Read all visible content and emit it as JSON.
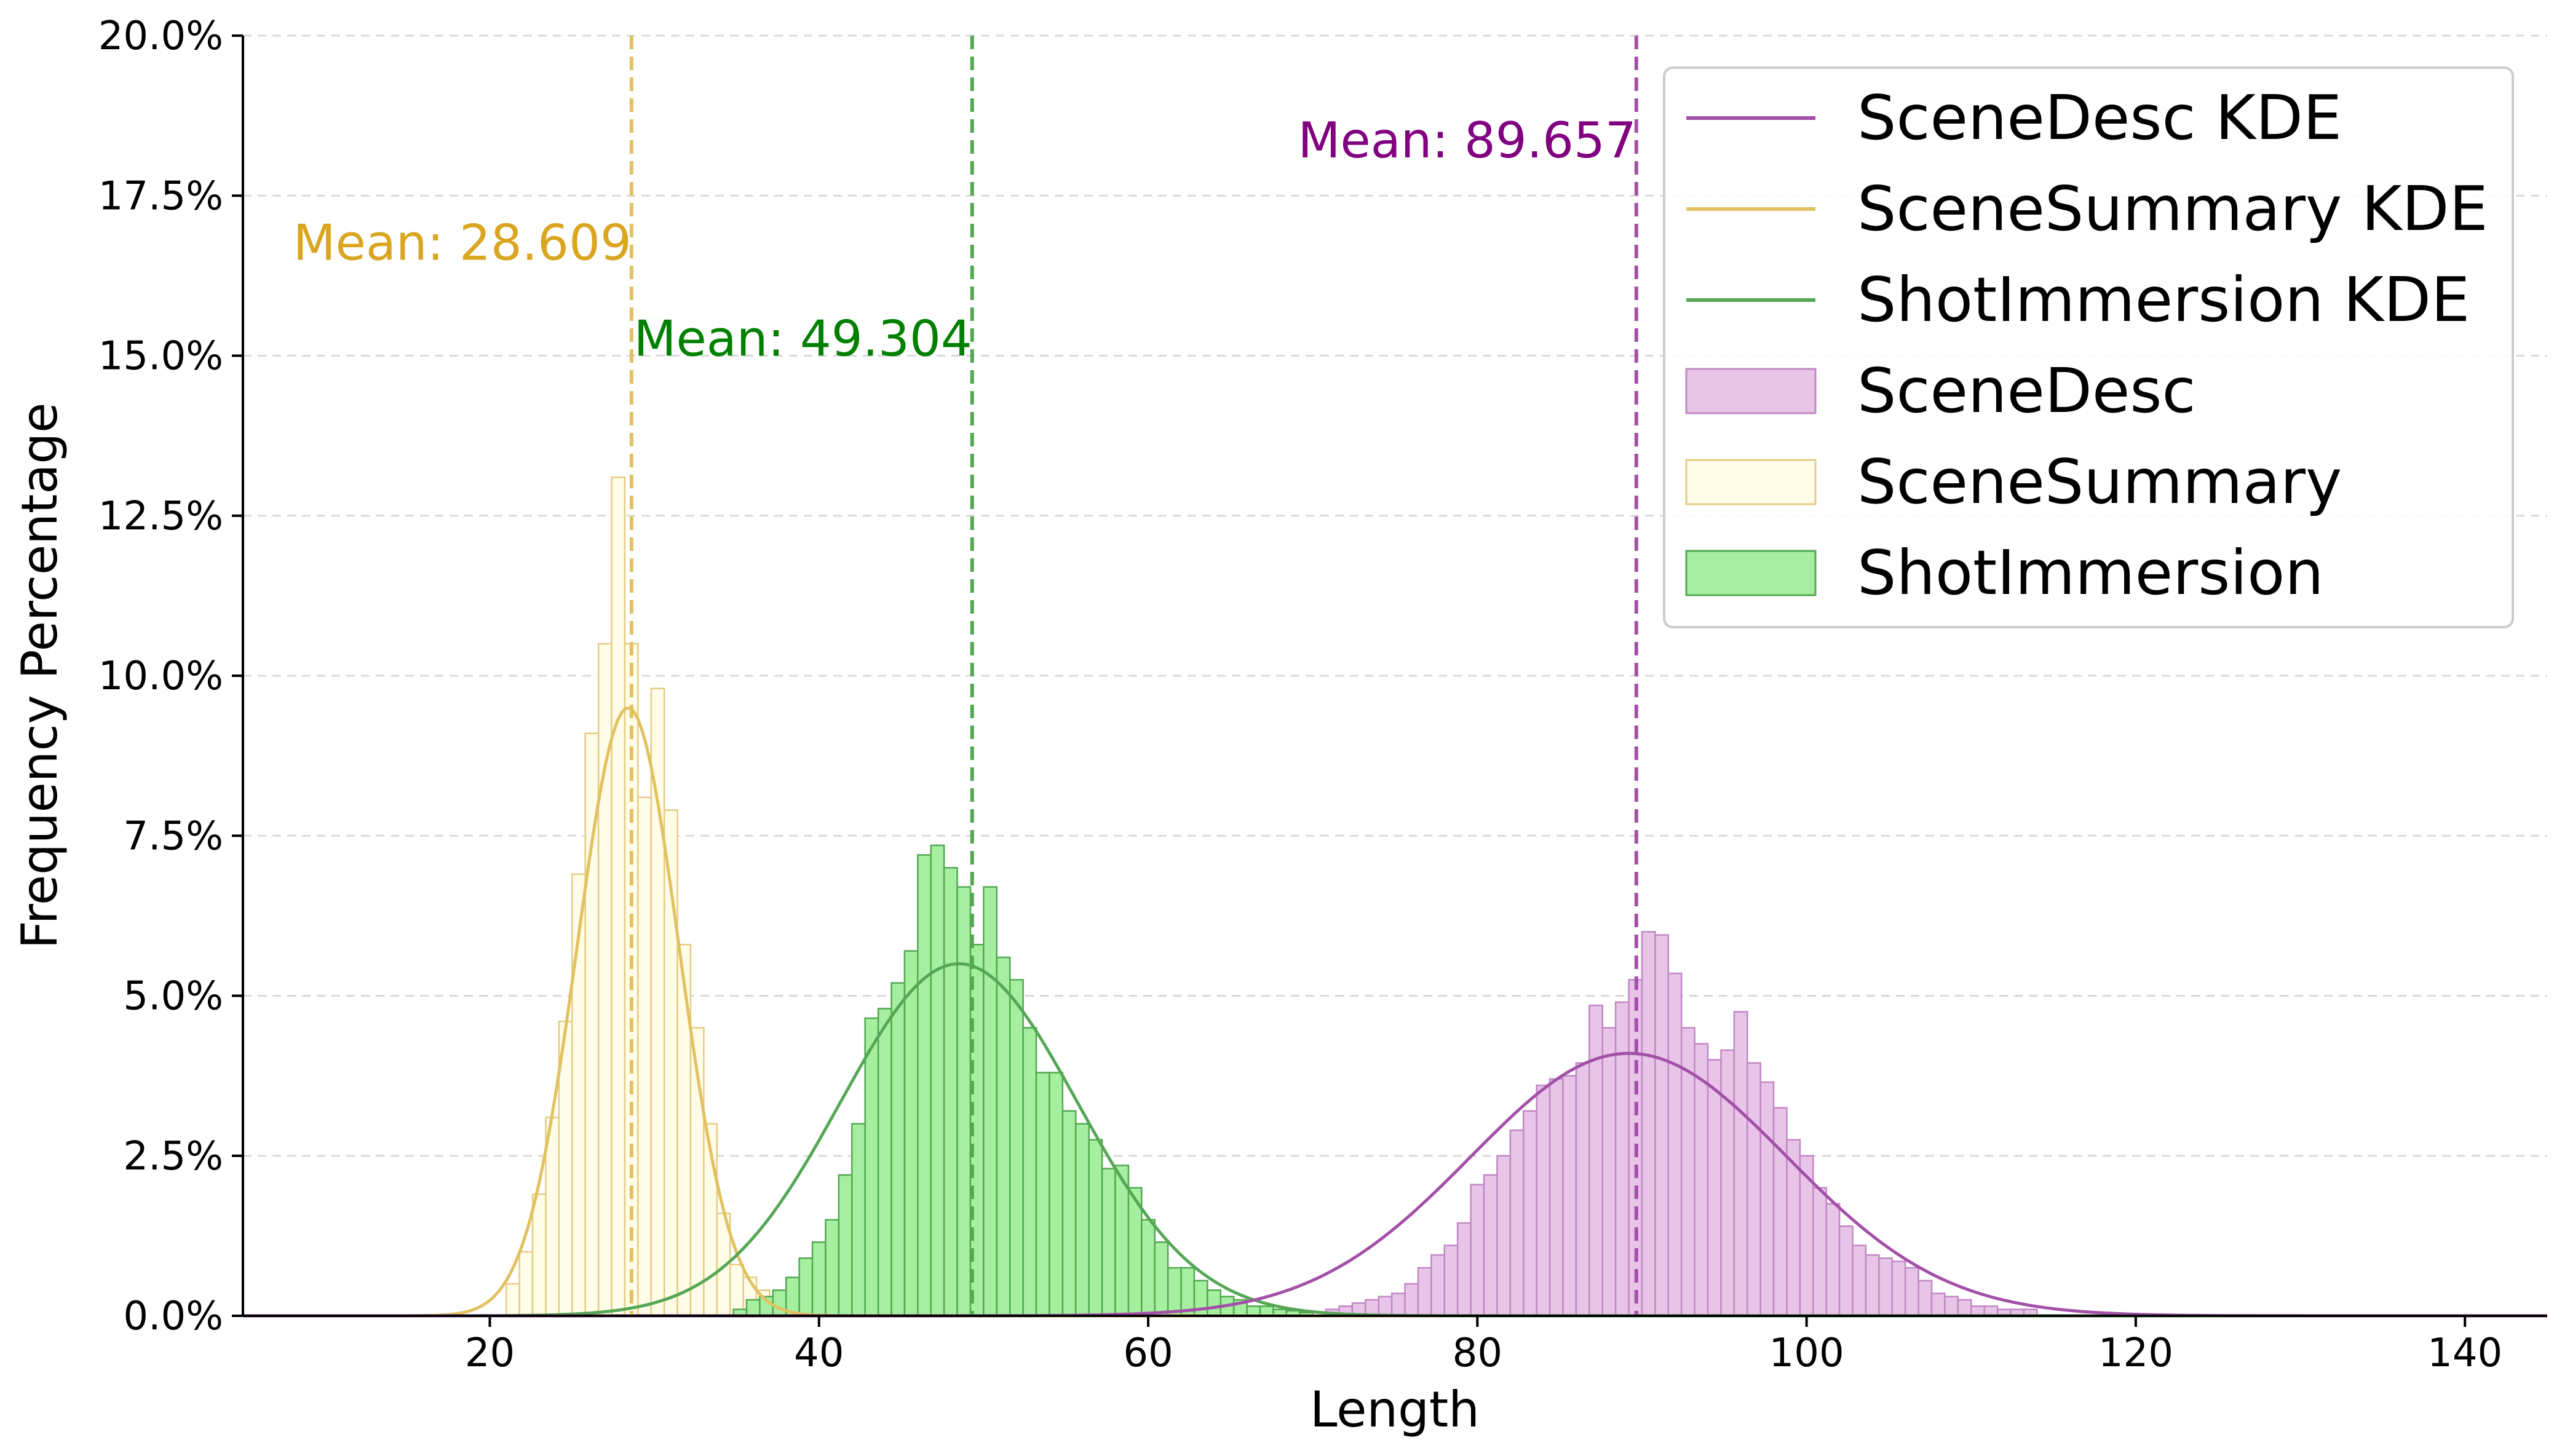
{
  "chart_data": {
    "type": "bar",
    "xlabel": "Length",
    "ylabel": "Frequency Percentage",
    "xlim": [
      5,
      145
    ],
    "ylim": [
      0,
      20
    ],
    "xticks": [
      20,
      40,
      60,
      80,
      100,
      120,
      140
    ],
    "xtick_labels": [
      "20",
      "40",
      "60",
      "80",
      "100",
      "120",
      "140"
    ],
    "yticks": [
      0,
      2.5,
      5,
      7.5,
      10,
      12.5,
      15,
      17.5,
      20
    ],
    "ytick_labels": [
      "0.0%",
      "2.5%",
      "5.0%",
      "7.5%",
      "10.0%",
      "12.5%",
      "15.0%",
      "17.5%",
      "20.0%"
    ],
    "grid": "horizontal dashed",
    "legend_position": "top-right",
    "legend": [
      {
        "label": "SceneDesc KDE",
        "kind": "line",
        "color": "#a350a8"
      },
      {
        "label": "SceneSummary KDE",
        "kind": "line",
        "color": "#e2c160"
      },
      {
        "label": "ShotImmersion KDE",
        "kind": "line",
        "color": "#55a755"
      },
      {
        "label": "SceneDesc",
        "kind": "bar",
        "fill": "#e8c4e8",
        "stroke": "#c088c4"
      },
      {
        "label": "SceneSummary",
        "kind": "bar",
        "fill": "#fffce8",
        "stroke": "#e5cc84"
      },
      {
        "label": "ShotImmersion",
        "kind": "bar",
        "fill": "#a6efa0",
        "stroke": "#52a852"
      }
    ],
    "series": [
      {
        "name": "SceneSummary",
        "bin_width": 0.8,
        "bin_starts": [
          21,
          21.8,
          22.6,
          23.4,
          24.2,
          25,
          25.8,
          26.6,
          27.4,
          28.2,
          29,
          29.8,
          30.6,
          31.4,
          32.2,
          33,
          33.8,
          34.6,
          35.4,
          36.2,
          37,
          37.8,
          38.6,
          39.4
        ],
        "values": [
          0.5,
          1.0,
          1.9,
          3.1,
          4.6,
          6.9,
          9.1,
          10.5,
          13.1,
          10.5,
          8.1,
          9.8,
          7.9,
          5.8,
          4.5,
          3.0,
          1.6,
          0.8,
          0.6,
          0.4,
          0.25,
          0.2,
          0.15,
          0.1
        ],
        "fill": "#fffce8",
        "stroke": "#e5cc84"
      },
      {
        "name": "ShotImmersion",
        "bin_width": 0.8,
        "bin_starts": [
          34.8,
          35.6,
          36.4,
          37.2,
          38,
          38.8,
          39.6,
          40.4,
          41.2,
          42,
          42.8,
          43.6,
          44.4,
          45.2,
          46,
          46.8,
          47.6,
          48.4,
          49.2,
          50,
          50.8,
          51.6,
          52.4,
          53.2,
          54,
          54.8,
          55.6,
          56.4,
          57.2,
          58,
          58.8,
          59.6,
          60.4,
          61.2,
          62,
          62.8,
          63.6,
          64.4,
          65.2,
          66,
          66.8,
          67.6,
          68.4,
          69.2
        ],
        "values": [
          0.1,
          0.25,
          0.3,
          0.4,
          0.6,
          0.9,
          1.15,
          1.5,
          2.2,
          3.0,
          4.65,
          4.8,
          5.2,
          5.7,
          7.2,
          7.35,
          7.0,
          6.7,
          5.8,
          6.7,
          5.6,
          5.25,
          4.5,
          3.8,
          3.8,
          3.2,
          3.0,
          2.75,
          2.3,
          2.35,
          2.0,
          1.5,
          1.15,
          0.75,
          0.75,
          0.55,
          0.4,
          0.3,
          0.25,
          0.15,
          0.15,
          0.1,
          0.08,
          0.05
        ],
        "fill": "#a6efa0",
        "stroke": "#52a852"
      },
      {
        "name": "SceneDesc",
        "bin_width": 0.8,
        "bin_starts": [
          70.8,
          71.6,
          72.4,
          73.2,
          74,
          74.8,
          75.6,
          76.4,
          77.2,
          78,
          78.8,
          79.6,
          80.4,
          81.2,
          82,
          82.8,
          83.6,
          84.4,
          85.2,
          86,
          86.8,
          87.6,
          88.4,
          89.2,
          90,
          90.8,
          91.6,
          92.4,
          93.2,
          94,
          94.8,
          95.6,
          96.4,
          97.2,
          98,
          98.8,
          99.6,
          100.4,
          101.2,
          102,
          102.8,
          103.6,
          104.4,
          105.2,
          106,
          106.8,
          107.6,
          108.4,
          109.2,
          110,
          110.8,
          111.6,
          112.4,
          113.2
        ],
        "values": [
          0.1,
          0.15,
          0.2,
          0.25,
          0.3,
          0.35,
          0.5,
          0.75,
          0.95,
          1.1,
          1.45,
          2.05,
          2.2,
          2.5,
          2.9,
          3.2,
          3.6,
          3.7,
          3.75,
          3.95,
          4.85,
          4.5,
          4.9,
          5.25,
          6.0,
          5.95,
          5.35,
          4.5,
          4.25,
          4.0,
          4.15,
          4.75,
          3.95,
          3.65,
          3.25,
          2.75,
          2.5,
          2.0,
          1.75,
          1.4,
          1.1,
          0.95,
          0.9,
          0.85,
          0.75,
          0.55,
          0.35,
          0.3,
          0.25,
          0.15,
          0.15,
          0.1,
          0.1,
          0.1
        ],
        "fill": "#e8c4e8",
        "stroke": "#c088c4"
      }
    ],
    "kde": [
      {
        "name": "SceneSummary KDE",
        "mean": 28.4,
        "sd": 3.1,
        "peak": 9.5,
        "color": "#e2c160"
      },
      {
        "name": "ShotImmersion KDE",
        "mean": 48.5,
        "sd": 7.2,
        "peak": 5.5,
        "color": "#55a755"
      },
      {
        "name": "SceneDesc KDE",
        "mean": 89.2,
        "sd": 9.6,
        "peak": 4.1,
        "color": "#a350a8"
      }
    ],
    "mean_lines": [
      {
        "x": 28.609,
        "label": "Mean: 28.609",
        "line_color": "#e2c160",
        "text_color": "#daa520",
        "label_y": 16.5,
        "label_side": "left"
      },
      {
        "x": 49.304,
        "label": "Mean: 49.304",
        "line_color": "#55a755",
        "text_color": "#008000",
        "label_y": 15.0,
        "label_side": "left"
      },
      {
        "x": 89.657,
        "label": "Mean: 89.657",
        "line_color": "#a350a8",
        "text_color": "#800080",
        "label_y": 18.1,
        "label_side": "left"
      }
    ]
  }
}
